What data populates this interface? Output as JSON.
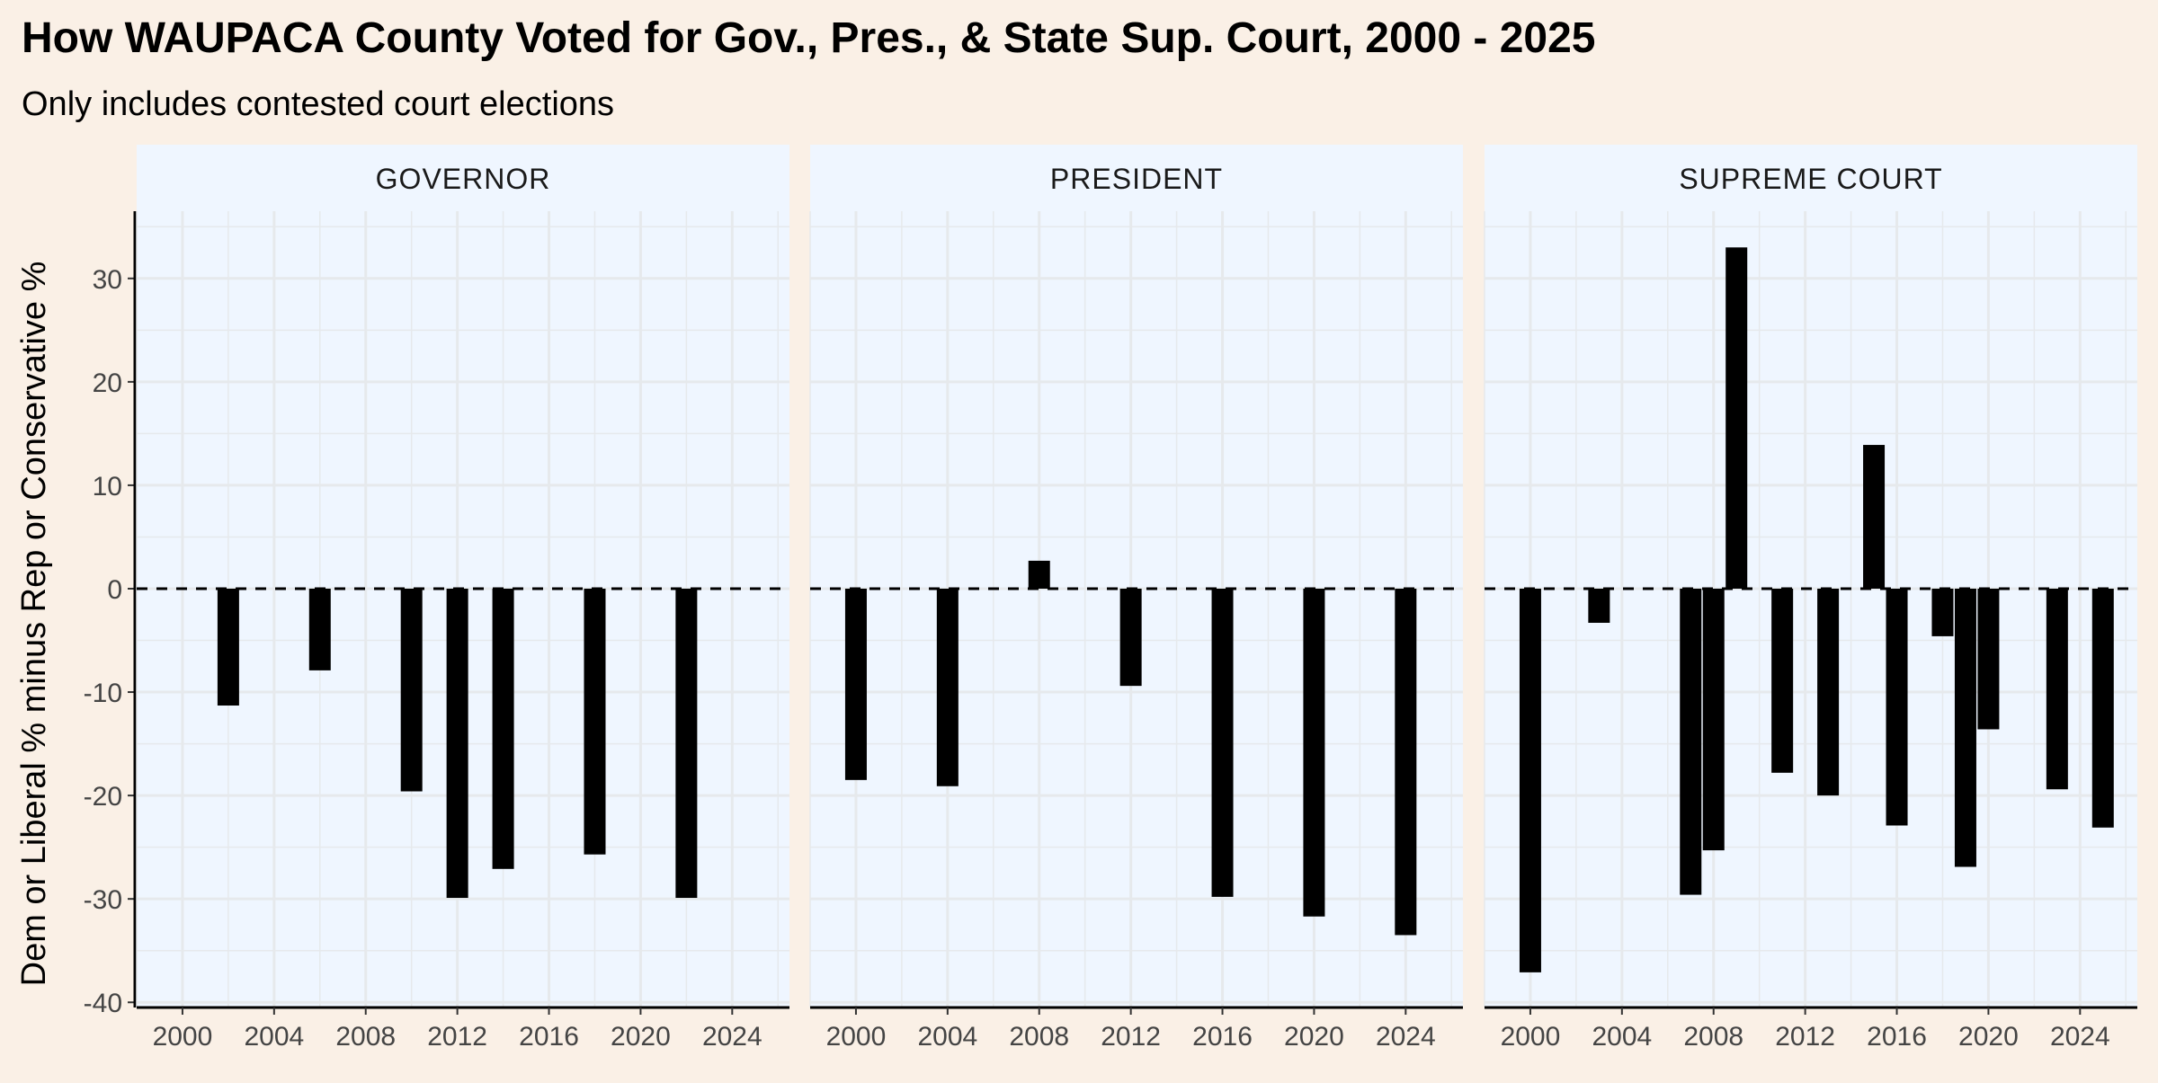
{
  "title": "How WAUPACA County Voted for Gov., Pres., & State Sup. Court, 2000 - 2025",
  "subtitle": "Only includes contested court elections",
  "colors": {
    "page_background": "#FAF0E6",
    "panel_background": "#EFF6FF",
    "strip_background": "#EFF6FF",
    "bar": "#000000",
    "grid": "#E6E9EC",
    "zero_line": "#000000"
  },
  "chart_data": {
    "type": "bar",
    "title": "How WAUPACA County Voted for Gov., Pres., & State Sup. Court, 2000 - 2025",
    "subtitle": "Only includes contested court elections",
    "ylabel": "Dem or Liberal % minus Rep or Conservative %",
    "xlabel": "",
    "ylim": [
      -40.5,
      36.5
    ],
    "xlim": [
      1998,
      2026.5
    ],
    "y_ticks": [
      -40,
      -30,
      -20,
      -10,
      0,
      10,
      20,
      30
    ],
    "x_ticks": [
      2000,
      2004,
      2008,
      2012,
      2016,
      2020,
      2024
    ],
    "zero_line": "dashed",
    "grid": true,
    "facets": [
      {
        "label": "GOVERNOR",
        "x": [
          2002,
          2006,
          2010,
          2012,
          2014,
          2018,
          2022
        ],
        "values": [
          -11.3,
          -7.9,
          -19.6,
          -29.9,
          -27.1,
          -25.7,
          -29.9
        ]
      },
      {
        "label": "PRESIDENT",
        "x": [
          2000,
          2004,
          2008,
          2012,
          2016,
          2020,
          2024
        ],
        "values": [
          -18.5,
          -19.1,
          2.7,
          -9.4,
          -29.8,
          -31.7,
          -33.5
        ]
      },
      {
        "label": "SUPREME COURT",
        "x": [
          2000,
          2003,
          2007,
          2008,
          2009,
          2011,
          2013,
          2015,
          2016,
          2018,
          2019,
          2020,
          2023,
          2025
        ],
        "values": [
          -37.1,
          -3.3,
          -29.6,
          -25.3,
          33.0,
          -17.8,
          -20.0,
          13.9,
          -22.9,
          -4.6,
          -26.9,
          -13.6,
          -19.4,
          -23.1
        ]
      }
    ]
  }
}
